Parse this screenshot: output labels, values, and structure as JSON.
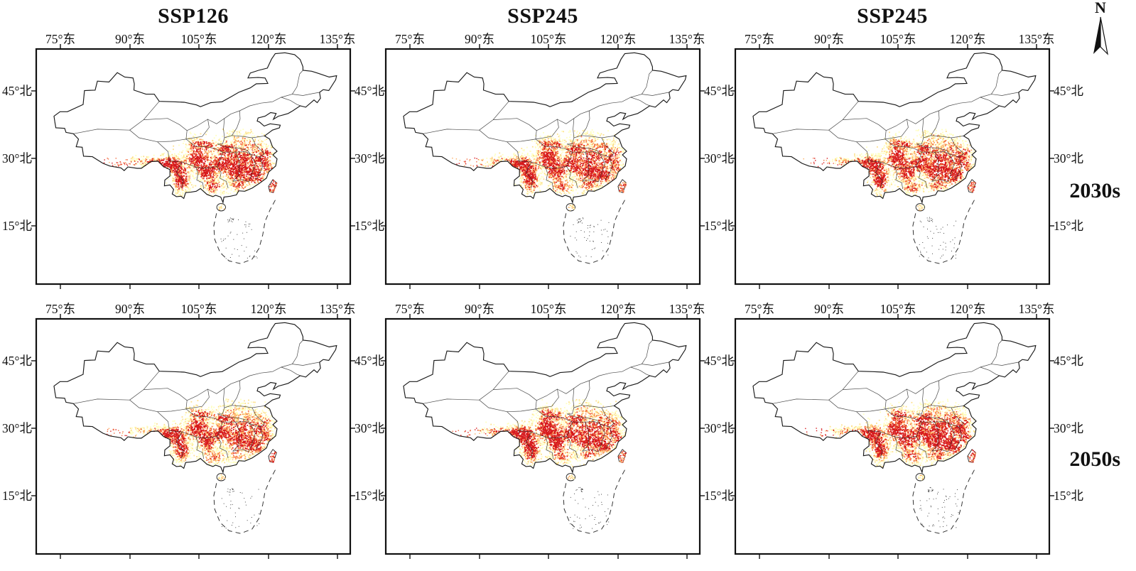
{
  "figure": {
    "compass_label": "N",
    "col_titles": [
      "SSP126",
      "SSP245",
      "SSP245"
    ],
    "row_labels": [
      "2030s",
      "2050s"
    ],
    "panels": [
      {
        "scenario": "SSP126",
        "period": "2030s"
      },
      {
        "scenario": "SSP245",
        "period": "2030s"
      },
      {
        "scenario": "SSP245",
        "period": "2030s"
      },
      {
        "scenario": "SSP126",
        "period": "2050s"
      },
      {
        "scenario": "SSP245",
        "period": "2050s"
      },
      {
        "scenario": "SSP245",
        "period": "2050s"
      }
    ],
    "axes": {
      "lon_ticks": [
        "75°东",
        "90°东",
        "105°东",
        "120°东",
        "135°东"
      ],
      "lat_ticks": [
        "45°北",
        "30°北",
        "15°北"
      ]
    },
    "colors": {
      "high": "#d7191c",
      "mid_high": "#f46d43",
      "mid": "#fdae61",
      "low": "#ffffbf",
      "outline": "#1a1a1a",
      "frame": "#111111"
    }
  }
}
